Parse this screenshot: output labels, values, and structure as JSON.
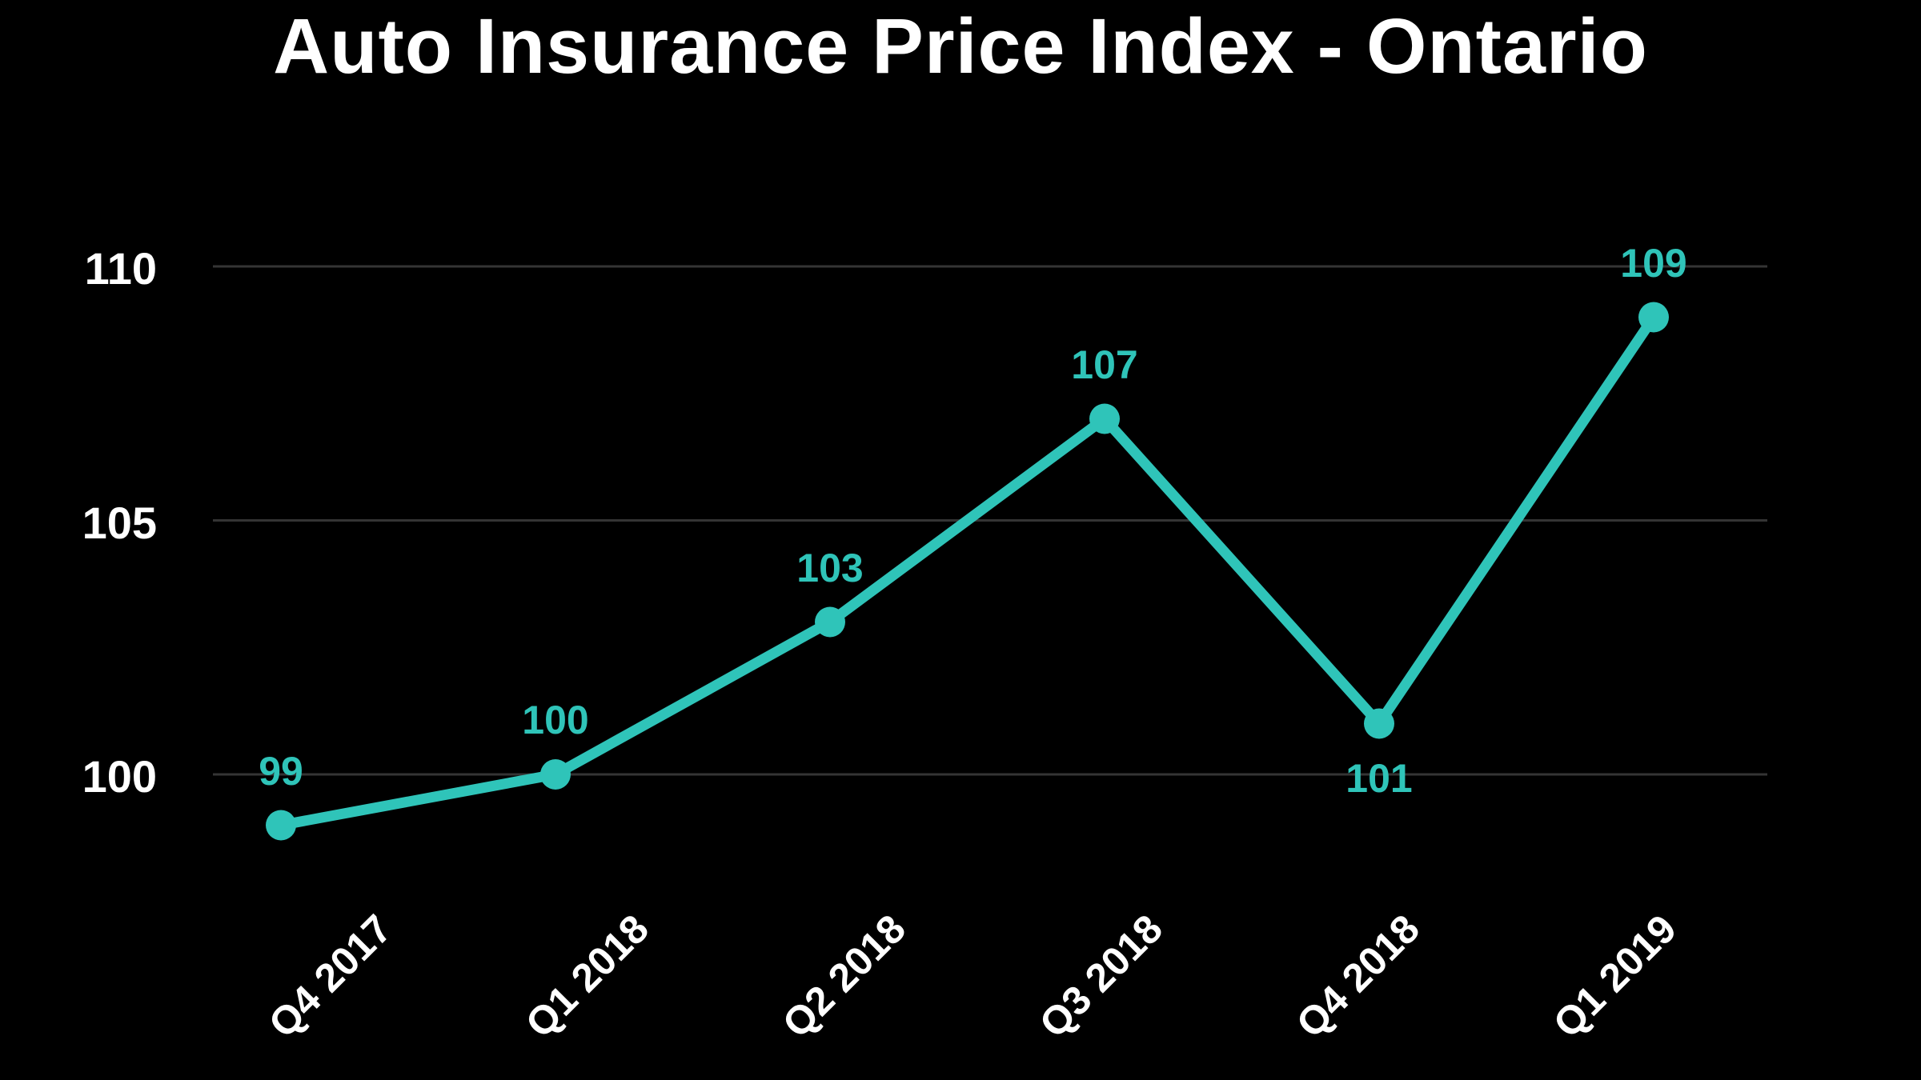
{
  "chart_data": {
    "type": "line",
    "title": "Auto Insurance Price Index - Ontario",
    "categories": [
      "Q4 2017",
      "Q1 2018",
      "Q2 2018",
      "Q3 2018",
      "Q4 2018",
      "Q1 2019"
    ],
    "series": [
      {
        "name": "Auto Insurance Price Index",
        "values": [
          99,
          100,
          103,
          107,
          101,
          109
        ]
      }
    ],
    "value_labels": [
      "99",
      "100",
      "103",
      "107",
      "101",
      "109"
    ],
    "value_label_positions": [
      "above",
      "above",
      "above",
      "above",
      "below",
      "above"
    ],
    "xlabel": "",
    "ylabel": "",
    "y_ticks": [
      100,
      105,
      110
    ],
    "ylim": [
      98,
      111
    ],
    "grid": true,
    "legend": "none",
    "colors": {
      "background": "#000000",
      "title_text": "#ffffff",
      "axis_text": "#ffffff",
      "gridline": "#343434",
      "line": "#2fc4b9",
      "point": "#2fc4b9",
      "value_label_text": "#2fc4b9"
    }
  }
}
